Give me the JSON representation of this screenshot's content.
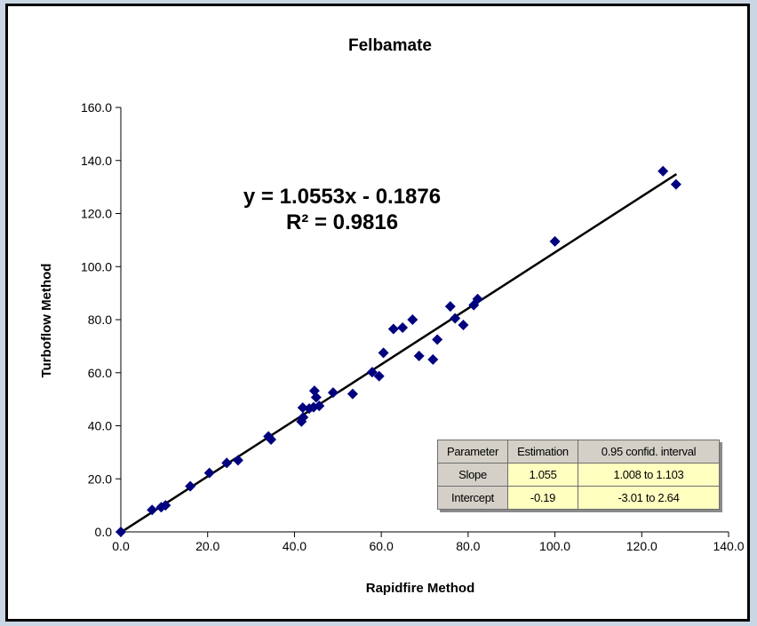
{
  "chart_data": {
    "type": "scatter",
    "title": "Felbamate",
    "xlabel": "Rapidfire Method",
    "ylabel": "Turboflow Method",
    "xlim": [
      0,
      140
    ],
    "ylim": [
      0,
      160
    ],
    "x_ticks": [
      "0.0",
      "20.0",
      "40.0",
      "60.0",
      "80.0",
      "100.0",
      "120.0",
      "140.0"
    ],
    "y_ticks": [
      "0.0",
      "20.0",
      "40.0",
      "60.0",
      "80.0",
      "100.0",
      "120.0",
      "140.0",
      "160.0"
    ],
    "grid": false,
    "marker_color": "#00007f",
    "line_color": "#000000",
    "trendline": {
      "slope": 1.0553,
      "intercept": -0.1876,
      "x_range": [
        0,
        128
      ]
    },
    "equation_text": "y = 1.0553x - 0.1876",
    "r2_text": "R² = 0.9816",
    "points": [
      {
        "x": 0.0,
        "y": 0.0
      },
      {
        "x": 7.2,
        "y": 8.3
      },
      {
        "x": 9.3,
        "y": 9.3
      },
      {
        "x": 10.3,
        "y": 10.0
      },
      {
        "x": 16.0,
        "y": 17.2
      },
      {
        "x": 20.4,
        "y": 22.2
      },
      {
        "x": 24.4,
        "y": 26.0
      },
      {
        "x": 27.0,
        "y": 27.0
      },
      {
        "x": 34.0,
        "y": 36.0
      },
      {
        "x": 34.6,
        "y": 34.8
      },
      {
        "x": 41.6,
        "y": 41.6
      },
      {
        "x": 42.0,
        "y": 43.2
      },
      {
        "x": 41.9,
        "y": 46.8
      },
      {
        "x": 43.4,
        "y": 46.5
      },
      {
        "x": 44.4,
        "y": 47.0
      },
      {
        "x": 44.6,
        "y": 53.2
      },
      {
        "x": 45.0,
        "y": 50.7
      },
      {
        "x": 45.7,
        "y": 47.5
      },
      {
        "x": 48.9,
        "y": 52.5
      },
      {
        "x": 53.4,
        "y": 52.0
      },
      {
        "x": 57.9,
        "y": 60.2
      },
      {
        "x": 59.5,
        "y": 58.7
      },
      {
        "x": 60.5,
        "y": 67.5
      },
      {
        "x": 62.8,
        "y": 76.5
      },
      {
        "x": 64.9,
        "y": 77.0
      },
      {
        "x": 67.2,
        "y": 80.0
      },
      {
        "x": 68.7,
        "y": 66.3
      },
      {
        "x": 71.9,
        "y": 65.0
      },
      {
        "x": 72.9,
        "y": 72.5
      },
      {
        "x": 75.9,
        "y": 85.0
      },
      {
        "x": 77.0,
        "y": 80.5
      },
      {
        "x": 78.9,
        "y": 78.0
      },
      {
        "x": 81.3,
        "y": 85.5
      },
      {
        "x": 82.2,
        "y": 87.8
      },
      {
        "x": 100.0,
        "y": 109.5
      },
      {
        "x": 124.9,
        "y": 136.0
      },
      {
        "x": 127.9,
        "y": 131.0
      }
    ]
  },
  "stats_table": {
    "headers": [
      "Parameter",
      "Estimation",
      "0.95 confid. interval"
    ],
    "rows": [
      [
        "Slope",
        "1.055",
        "1.008 to 1.103"
      ],
      [
        "Intercept",
        "-0.19",
        "-3.01 to 2.64"
      ]
    ]
  }
}
